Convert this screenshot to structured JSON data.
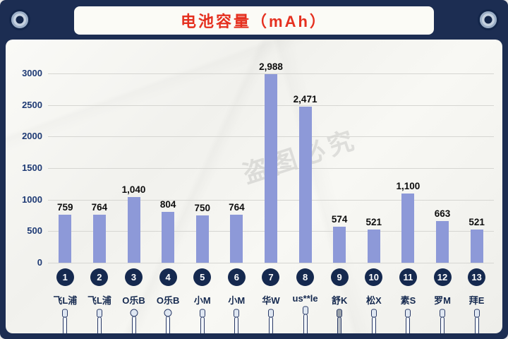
{
  "header": {
    "title": "电池容量（mAh）"
  },
  "watermark": {
    "text": "盗图必究"
  },
  "chart_data": {
    "type": "bar",
    "title": "电池容量（mAh）",
    "categories": [
      "飞L浦",
      "飞L浦",
      "O乐B",
      "O乐B",
      "小M",
      "小M",
      "华W",
      "us**le",
      "舒K",
      "松X",
      "素S",
      "罗M",
      "拜E"
    ],
    "values": [
      759,
      764,
      1040,
      804,
      750,
      764,
      2988,
      2471,
      574,
      521,
      1100,
      663,
      521
    ],
    "value_labels": [
      "759",
      "764",
      "1,040",
      "804",
      "750",
      "764",
      "2,988",
      "2,471",
      "574",
      "521",
      "1,100",
      "663",
      "521"
    ],
    "ranks": [
      "1",
      "2",
      "3",
      "4",
      "5",
      "6",
      "7",
      "8",
      "9",
      "10",
      "11",
      "12",
      "13"
    ],
    "xlabel": "",
    "ylabel": "",
    "ylim": [
      0,
      3000
    ],
    "yticks": [
      0,
      500,
      1000,
      1500,
      2000,
      2500,
      3000
    ],
    "grid": true,
    "legend": "none",
    "bar_color": "#8d99d8",
    "title_color": "#e5301f",
    "frame_color": "#1c2d52"
  }
}
